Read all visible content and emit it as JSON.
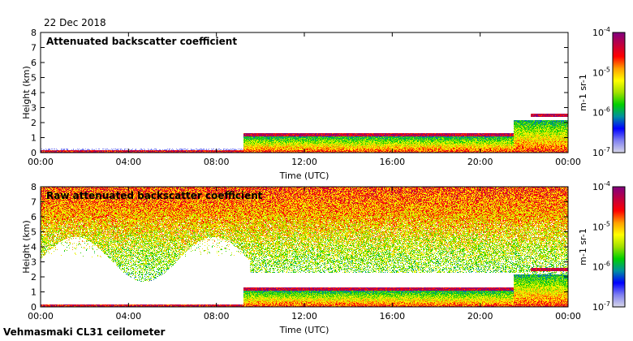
{
  "date_label": "22 Dec 2018",
  "footer_label": "Vehmasmaki CL31 ceilometer",
  "colors": {
    "cbar": [
      "#d8d8e8",
      "#8080f0",
      "#0000ff",
      "#0090a0",
      "#00d000",
      "#a0e000",
      "#ffff00",
      "#ffa000",
      "#ff0000",
      "#c00040",
      "#800080"
    ]
  },
  "chart_data": [
    {
      "type": "heatmap",
      "title": "Attenuated backscatter coefficient",
      "xlabel": "Time (UTC)",
      "ylabel": "Height (km)",
      "xlim": [
        0,
        24
      ],
      "ylim": [
        0,
        8
      ],
      "xticks": [
        "00:00",
        "04:00",
        "08:00",
        "12:00",
        "16:00",
        "20:00",
        "00:00"
      ],
      "yticks": [
        "0",
        "1",
        "2",
        "3",
        "4",
        "5",
        "6",
        "7",
        "8"
      ],
      "colorbar": {
        "label": "m-1 sr-1",
        "ticks": [
          "10-7",
          "10-6",
          "10-5",
          "10-4"
        ],
        "scale": "log",
        "range": [
          1e-07,
          0.0001
        ]
      },
      "noise_level": 0.0,
      "features": [
        {
          "name": "surface-layer",
          "t0": 0,
          "t1": 9.2,
          "h0": 0,
          "h1": 0.2,
          "level": 0.85
        },
        {
          "name": "boundary-layer",
          "t0": 9.2,
          "t1": 21.5,
          "h0": 0,
          "h1": 1.1,
          "level": 0.5
        },
        {
          "name": "cloud-base-low",
          "t0": 9.2,
          "t1": 21.5,
          "h0": 1.1,
          "h1": 1.3,
          "level": 0.9
        },
        {
          "name": "cloud-upper",
          "t0": 22.3,
          "t1": 24,
          "h0": 2.4,
          "h1": 2.6,
          "level": 0.9
        },
        {
          "name": "boundary-layer-late",
          "t0": 21.5,
          "t1": 24,
          "h0": 0,
          "h1": 2.2,
          "level": 0.5
        }
      ]
    },
    {
      "type": "heatmap",
      "title": "Raw attenuated backscatter coefficient",
      "xlabel": "Time (UTC)",
      "ylabel": "Height (km)",
      "xlim": [
        0,
        24
      ],
      "ylim": [
        0,
        8
      ],
      "xticks": [
        "00:00",
        "04:00",
        "08:00",
        "12:00",
        "16:00",
        "20:00",
        "00:00"
      ],
      "yticks": [
        "0",
        "1",
        "2",
        "3",
        "4",
        "5",
        "6",
        "7",
        "8"
      ],
      "colorbar": {
        "label": "m-1 sr-1",
        "ticks": [
          "10-7",
          "10-6",
          "10-5",
          "10-4"
        ],
        "scale": "log",
        "range": [
          1e-07,
          0.0001
        ]
      },
      "noise_level": 1.0,
      "features": [
        {
          "name": "surface-layer",
          "t0": 0,
          "t1": 9.2,
          "h0": 0,
          "h1": 0.2,
          "level": 0.85
        },
        {
          "name": "boundary-layer",
          "t0": 9.2,
          "t1": 21.5,
          "h0": 0,
          "h1": 1.1,
          "level": 0.5
        },
        {
          "name": "cloud-base-low",
          "t0": 9.2,
          "t1": 21.5,
          "h0": 1.1,
          "h1": 1.3,
          "level": 0.9
        },
        {
          "name": "cloud-upper",
          "t0": 22.3,
          "t1": 24,
          "h0": 2.4,
          "h1": 2.6,
          "level": 0.9
        },
        {
          "name": "boundary-layer-late",
          "t0": 21.5,
          "t1": 24,
          "h0": 0,
          "h1": 2.2,
          "level": 0.5
        }
      ]
    }
  ]
}
